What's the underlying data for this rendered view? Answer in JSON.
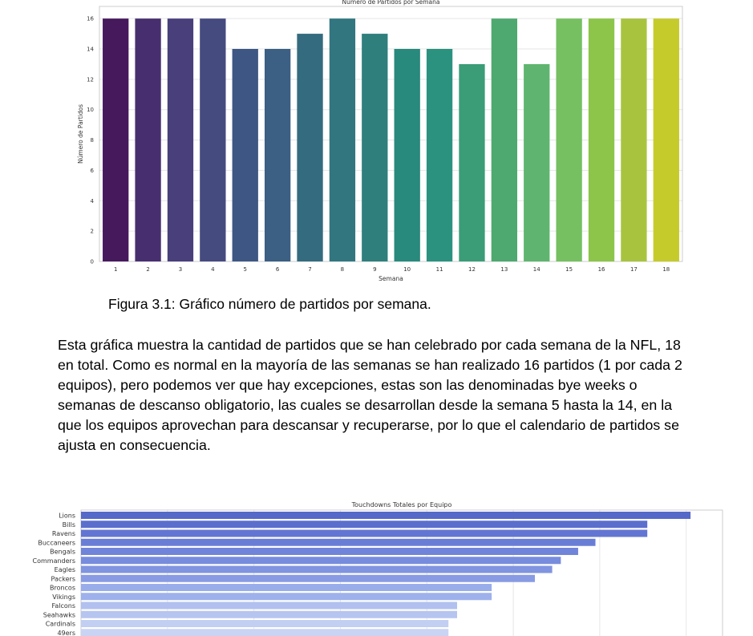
{
  "figure1": {
    "chart_data": {
      "type": "bar",
      "title": "Número de Partidos por Semana",
      "xlabel": "Semana",
      "ylabel": "Número de Partidos",
      "categories": [
        "1",
        "2",
        "3",
        "4",
        "5",
        "6",
        "7",
        "8",
        "9",
        "10",
        "11",
        "12",
        "13",
        "14",
        "15",
        "16",
        "17",
        "18"
      ],
      "values": [
        16,
        16,
        16,
        16,
        14,
        14,
        15,
        16,
        15,
        14,
        14,
        13,
        16,
        13,
        16,
        16,
        16,
        16
      ],
      "ylim": [
        0,
        16.8
      ],
      "yticks": [
        0,
        2,
        4,
        6,
        8,
        10,
        12,
        14,
        16
      ],
      "grid": true,
      "palette": "viridis",
      "colors": [
        "#46195d",
        "#472f6f",
        "#483f7b",
        "#454a7f",
        "#3e5684",
        "#3c5f84",
        "#346b7f",
        "#327680",
        "#2f7f7d",
        "#28897d",
        "#2b9280",
        "#3a9d78",
        "#4ea970",
        "#5fb56f",
        "#76c062",
        "#8cc54a",
        "#a8c43f",
        "#c6cb2c"
      ]
    },
    "caption": "Figura 3.1: Gráfico número de partidos por semana."
  },
  "paragraph": "Esta gráfica muestra la cantidad de partidos que se han celebrado por cada semana de la NFL, 18 en total. Como es normal en la mayoría de las semanas se han realizado 16 partidos (1 por cada 2 equipos), pero podemos ver que hay excepciones, estas son las denominadas bye weeks o semanas de descanso obligatorio, las cuales se desarrollan desde la semana 5 hasta la 14, en la que los equipos aprovechan para descansar y recuperarse, por lo que el calendario de partidos se ajusta en consecuencia.",
  "figure2": {
    "chart_data": {
      "type": "bar",
      "orientation": "horizontal",
      "title": "Touchdowns Totales por Equipo",
      "categories": [
        "Lions",
        "Bills",
        "Ravens",
        "Buccaneers",
        "Bengals",
        "Commanders",
        "Eagles",
        "Packers",
        "Broncos",
        "Vikings",
        "Falcons",
        "Seahawks",
        "Cardinals",
        "49ers"
      ],
      "values": [
        70.5,
        65.5,
        65.5,
        59.5,
        57.5,
        55.5,
        54.5,
        52.5,
        47.5,
        47.5,
        43.5,
        43.5,
        42.5,
        42.5
      ],
      "xlim": [
        0,
        74.2
      ],
      "xgrid": [
        10,
        20,
        30,
        40,
        50,
        60,
        70
      ],
      "grid": true,
      "palette": "coolwarm",
      "colors": [
        "#5569c9",
        "#5b6ecd",
        "#6375d2",
        "#6a7dd6",
        "#7084d9",
        "#788cdd",
        "#8094e0",
        "#889be3",
        "#9aadeb",
        "#9eb1ec",
        "#b1c0ef",
        "#b6c4f0",
        "#c2cff3",
        "#c9d4f5"
      ]
    }
  }
}
